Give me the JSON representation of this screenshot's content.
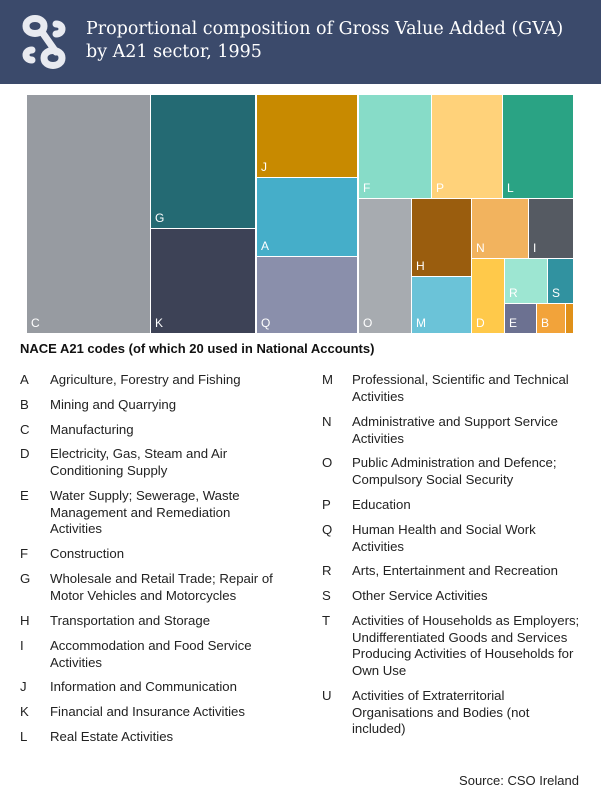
{
  "header": {
    "title": "Proportional composition of Gross Value Added (GVA) by A21 sector, 1995",
    "logo_icon": "cso-logo-icon",
    "background_color": "#3b4a6b"
  },
  "chart_data": {
    "type": "treemap",
    "title": "Proportional composition of Gross Value Added (GVA) by A21 sector, 1995",
    "tiles": [
      {
        "label": "C",
        "value": 0.195,
        "color": "#979ba1"
      },
      {
        "label": "G",
        "value": 0.11,
        "color": "#246a73"
      },
      {
        "label": "K",
        "value": 0.08,
        "color": "#3d4256"
      },
      {
        "label": "J",
        "value": 0.063,
        "color": "#c88a00"
      },
      {
        "label": "A",
        "value": 0.061,
        "color": "#45aec9"
      },
      {
        "label": "Q",
        "value": 0.059,
        "color": "#8a8fab"
      },
      {
        "label": "F",
        "value": 0.052,
        "color": "#87dcc8"
      },
      {
        "label": "P",
        "value": 0.052,
        "color": "#ffd27a"
      },
      {
        "label": "L",
        "value": 0.053,
        "color": "#2aa384"
      },
      {
        "label": "O",
        "value": 0.051,
        "color": "#a7abb0"
      },
      {
        "label": "H",
        "value": 0.036,
        "color": "#9a5d0e"
      },
      {
        "label": "M",
        "value": 0.03,
        "color": "#6bc3d8"
      },
      {
        "label": "N",
        "value": 0.02,
        "color": "#f2b35e"
      },
      {
        "label": "I",
        "value": 0.018,
        "color": "#555a62"
      },
      {
        "label": "D",
        "value": 0.018,
        "color": "#ffc94a"
      },
      {
        "label": "R",
        "value": 0.012,
        "color": "#9de6d2"
      },
      {
        "label": "S",
        "value": 0.011,
        "color": "#3192a0"
      },
      {
        "label": "E",
        "value": 0.009,
        "color": "#6c7191"
      },
      {
        "label": "B",
        "value": 0.008,
        "color": "#f2a33a"
      },
      {
        "label": "T",
        "value": 0.002,
        "color": "#e09018"
      }
    ]
  },
  "codes_heading": "NACE A21 codes (of which 20 used in National Accounts)",
  "legend": {
    "left": [
      {
        "code": "A",
        "desc": "Agriculture, Forestry and Fishing"
      },
      {
        "code": "B",
        "desc": "Mining and Quarrying"
      },
      {
        "code": "C",
        "desc": "Manufacturing"
      },
      {
        "code": "D",
        "desc": "Electricity, Gas, Steam and Air Conditioning Supply"
      },
      {
        "code": "E",
        "desc": "Water Supply; Sewerage, Waste Management and Remediation Activities"
      },
      {
        "code": "F",
        "desc": "Construction"
      },
      {
        "code": "G",
        "desc": "Wholesale and Retail Trade; Repair of Motor Vehicles and Motorcycles"
      },
      {
        "code": "H",
        "desc": "Transportation and Storage"
      },
      {
        "code": "I",
        "desc": "Accommodation and Food Service Activities"
      },
      {
        "code": "J",
        "desc": "Information and Communication"
      },
      {
        "code": "K",
        "desc": "Financial and Insurance Activities"
      },
      {
        "code": "L",
        "desc": "Real Estate Activities"
      }
    ],
    "right": [
      {
        "code": "M",
        "desc": "Professional, Scientific and Technical Activities"
      },
      {
        "code": "N",
        "desc": "Administrative and Support Service Activities"
      },
      {
        "code": "O",
        "desc": "Public Administration and Defence; Compulsory Social Security"
      },
      {
        "code": "P",
        "desc": "Education"
      },
      {
        "code": "Q",
        "desc": "Human Health and Social Work Activities"
      },
      {
        "code": "R",
        "desc": "Arts, Entertainment and Recreation"
      },
      {
        "code": "S",
        "desc": "Other Service Activities"
      },
      {
        "code": "T",
        "desc": "Activities of Households as Employers; Undifferentiated Goods and Services Producing Activities of Households for Own Use"
      },
      {
        "code": "U",
        "desc": "Activities of Extraterritorial Organisations and Bodies (not included)"
      }
    ]
  },
  "source": "Source:  CSO Ireland"
}
